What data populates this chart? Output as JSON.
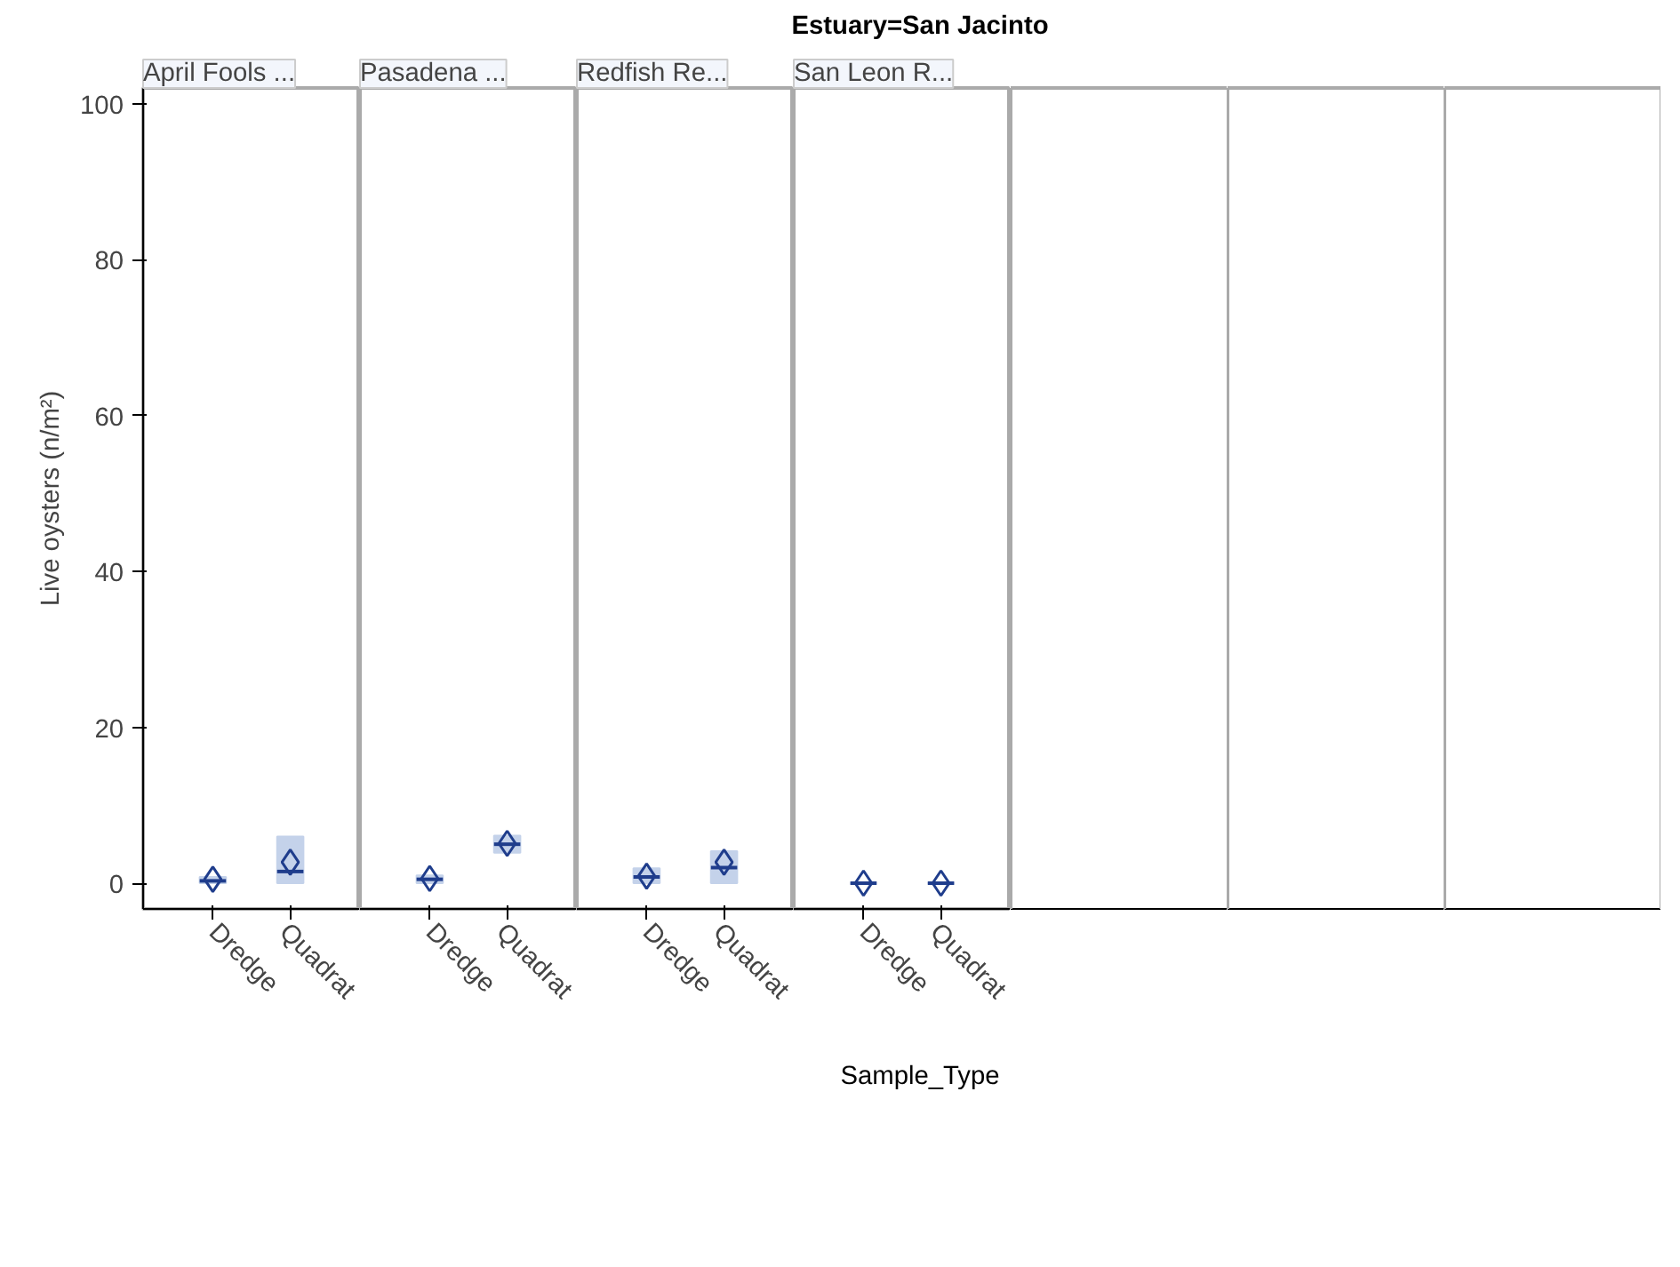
{
  "chart_data": [
    {
      "type": "box",
      "title": "April Fools ...",
      "ylabel": "Live oysters (n/m²)",
      "annotations": [
        "Estuary=San Jacinto",
        "Sample_Type"
      ],
      "categories": [
        "Dredge",
        "Quadrat"
      ],
      "color": "#c4d2ea",
      "ylim": [
        -3.3,
        102
      ],
      "yticks": [
        0,
        20,
        40,
        60,
        80,
        100
      ],
      "grid": false,
      "boxes": [
        {
          "low": 0,
          "q1": 0,
          "median": 0.3,
          "q3": 0.8,
          "high": 0.8,
          "mean": 0.5
        },
        {
          "low": 0,
          "q1": 0,
          "median": 1.5,
          "q3": 6,
          "high": 6,
          "mean": 2.7
        }
      ]
    },
    {
      "type": "box",
      "title": "Pasadena ...",
      "categories": [
        "Dredge",
        "Quadrat"
      ],
      "color": "#c4d2ea",
      "ylim": [
        -3.3,
        102
      ],
      "tick_labels": "x",
      "boxes": [
        {
          "low": 0,
          "q1": 0,
          "median": 0.5,
          "q3": 1,
          "high": 1,
          "mean": 0.6
        },
        {
          "low": 3.9,
          "q1": 3.9,
          "median": 5,
          "q3": 6.1,
          "high": 6.1,
          "mean": 5.1
        }
      ]
    },
    {
      "type": "box",
      "title": "Redfish Re...",
      "categories": [
        "Dredge",
        "Quadrat"
      ],
      "color": "#c4d2ea",
      "ylim": [
        -3.3,
        102
      ],
      "tick_labels": "x",
      "boxes": [
        {
          "low": 0,
          "q1": 0,
          "median": 0.8,
          "q3": 1.9,
          "high": 1.9,
          "mean": 0.9
        },
        {
          "low": 0,
          "q1": 0,
          "median": 2,
          "q3": 4.1,
          "high": 4.1,
          "mean": 2.7
        }
      ]
    },
    {
      "type": "box",
      "title": "San Leon R...",
      "categories": [
        "Dredge",
        "Quadrat"
      ],
      "color": "#c4d2ea",
      "ylim": [
        -3.3,
        102
      ],
      "tick_labels": "x",
      "boxes": [
        {
          "low": 0,
          "q1": 0,
          "median": 0,
          "q3": 0,
          "high": 0,
          "mean": 0
        },
        {
          "low": 0,
          "q1": 0,
          "median": 0,
          "q3": 0,
          "high": 0,
          "mean": 0
        }
      ]
    },
    {
      "type": "box",
      "categories": [
        null,
        null
      ],
      "boxes": [
        null,
        null
      ],
      "ylim": [
        -3.3,
        102
      ],
      "tick_labels": false
    },
    {
      "type": "box",
      "categories": [
        null,
        null
      ],
      "boxes": [
        null,
        null
      ],
      "ylim": [
        -3.3,
        102
      ],
      "tick_labels": false
    },
    {
      "type": "box",
      "categories": [
        null,
        null
      ],
      "boxes": [
        null,
        null
      ],
      "ylim": [
        -3.3,
        102
      ],
      "tick_labels": false
    }
  ]
}
